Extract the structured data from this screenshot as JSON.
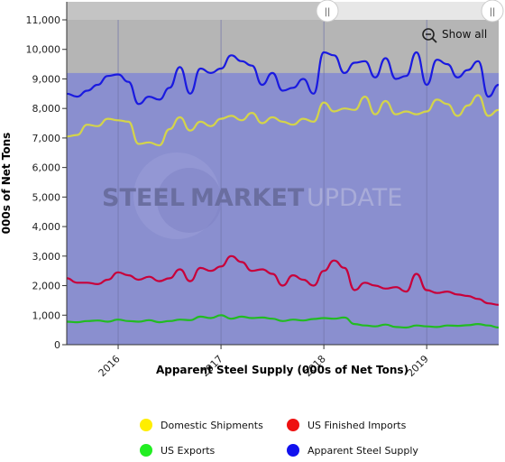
{
  "chart_data": {
    "type": "line",
    "title": "",
    "xlabel": "Apparent Steel Supply (000s of Net Tons)",
    "ylabel": "000s of Net Tons",
    "ylim": [
      0,
      11000
    ],
    "y_ticks": [
      0,
      1000,
      2000,
      3000,
      4000,
      5000,
      6000,
      7000,
      8000,
      9000,
      10000,
      11000
    ],
    "y_tick_labels": [
      "0",
      "1,000",
      "2,000",
      "3,000",
      "4,000",
      "5,000",
      "6,000",
      "7,000",
      "8,000",
      "9,000",
      "10,000",
      "11,000"
    ],
    "x_tick_labels": [
      "2016",
      "2017",
      "2018",
      "2019"
    ],
    "x_tick_positions": [
      2016,
      2017,
      2018,
      2019
    ],
    "xlim": [
      2015.5,
      2019.7
    ],
    "grid": true,
    "legend_position": "bottom",
    "colors": {
      "plot_bg": "#8a8fcf",
      "navigator": "#c4c4c4",
      "grid": "#6f73a8",
      "axis": "#333333"
    },
    "series": [
      {
        "name": "Domestic Shipments",
        "color": "#d4d44a",
        "legend_color": "#ffee00",
        "x": [
          2015.5,
          2015.6,
          2015.7,
          2015.8,
          2015.9,
          2016.0,
          2016.1,
          2016.2,
          2016.3,
          2016.4,
          2016.5,
          2016.6,
          2016.7,
          2016.8,
          2016.9,
          2017.0,
          2017.1,
          2017.2,
          2017.3,
          2017.4,
          2017.5,
          2017.6,
          2017.7,
          2017.8,
          2017.9,
          2018.0,
          2018.1,
          2018.2,
          2018.3,
          2018.4,
          2018.5,
          2018.6,
          2018.7,
          2018.8,
          2018.9,
          2019.0,
          2019.1,
          2019.2,
          2019.3,
          2019.4,
          2019.5,
          2019.6,
          2019.7
        ],
        "values": [
          7050,
          7100,
          7450,
          7400,
          7650,
          7600,
          7550,
          6800,
          6850,
          6750,
          7300,
          7700,
          7250,
          7550,
          7400,
          7650,
          7750,
          7600,
          7850,
          7500,
          7700,
          7550,
          7450,
          7650,
          7550,
          8200,
          7900,
          8000,
          7950,
          8400,
          7800,
          8250,
          7800,
          7900,
          7800,
          7900,
          8300,
          8150,
          7750,
          8100,
          8450,
          7750,
          7950
        ]
      },
      {
        "name": "US Finished Imports",
        "color": "#c8003a",
        "legend_color": "#ee1111",
        "x": [
          2015.5,
          2015.6,
          2015.7,
          2015.8,
          2015.9,
          2016.0,
          2016.1,
          2016.2,
          2016.3,
          2016.4,
          2016.5,
          2016.6,
          2016.7,
          2016.8,
          2016.9,
          2017.0,
          2017.1,
          2017.2,
          2017.3,
          2017.4,
          2017.5,
          2017.6,
          2017.7,
          2017.8,
          2017.9,
          2018.0,
          2018.1,
          2018.2,
          2018.3,
          2018.4,
          2018.5,
          2018.6,
          2018.7,
          2018.8,
          2018.9,
          2019.0,
          2019.1,
          2019.2,
          2019.3,
          2019.4,
          2019.5,
          2019.6,
          2019.7
        ],
        "values": [
          2250,
          2100,
          2100,
          2050,
          2200,
          2450,
          2350,
          2200,
          2300,
          2150,
          2250,
          2550,
          2150,
          2600,
          2500,
          2650,
          3000,
          2800,
          2500,
          2550,
          2400,
          2000,
          2350,
          2200,
          2000,
          2500,
          2850,
          2600,
          1850,
          2100,
          2000,
          1900,
          1950,
          1800,
          2400,
          1850,
          1750,
          1800,
          1700,
          1650,
          1550,
          1400,
          1350
        ]
      },
      {
        "name": "US Exports",
        "color": "#22bb22",
        "legend_color": "#22ee22",
        "x": [
          2015.5,
          2015.6,
          2015.7,
          2015.8,
          2015.9,
          2016.0,
          2016.1,
          2016.2,
          2016.3,
          2016.4,
          2016.5,
          2016.6,
          2016.7,
          2016.8,
          2016.9,
          2017.0,
          2017.1,
          2017.2,
          2017.3,
          2017.4,
          2017.5,
          2017.6,
          2017.7,
          2017.8,
          2017.9,
          2018.0,
          2018.1,
          2018.2,
          2018.3,
          2018.4,
          2018.5,
          2018.6,
          2018.7,
          2018.8,
          2018.9,
          2019.0,
          2019.1,
          2019.2,
          2019.3,
          2019.4,
          2019.5,
          2019.6,
          2019.7
        ],
        "values": [
          780,
          760,
          800,
          820,
          780,
          850,
          800,
          780,
          830,
          760,
          800,
          850,
          830,
          950,
          900,
          1000,
          880,
          950,
          900,
          920,
          880,
          800,
          850,
          820,
          870,
          900,
          880,
          920,
          700,
          650,
          620,
          680,
          600,
          580,
          650,
          620,
          600,
          650,
          640,
          660,
          700,
          650,
          580
        ]
      },
      {
        "name": "Apparent Steel Supply",
        "color": "#1a1ae0",
        "legend_color": "#1111ee",
        "x": [
          2015.5,
          2015.6,
          2015.7,
          2015.8,
          2015.9,
          2016.0,
          2016.1,
          2016.2,
          2016.3,
          2016.4,
          2016.5,
          2016.6,
          2016.7,
          2016.8,
          2016.9,
          2017.0,
          2017.1,
          2017.2,
          2017.3,
          2017.4,
          2017.5,
          2017.6,
          2017.7,
          2017.8,
          2017.9,
          2018.0,
          2018.1,
          2018.2,
          2018.3,
          2018.4,
          2018.5,
          2018.6,
          2018.7,
          2018.8,
          2018.9,
          2019.0,
          2019.1,
          2019.2,
          2019.3,
          2019.4,
          2019.5,
          2019.6,
          2019.7
        ],
        "values": [
          8500,
          8400,
          8600,
          8800,
          9100,
          9150,
          8900,
          8150,
          8400,
          8300,
          8700,
          9400,
          8500,
          9350,
          9200,
          9350,
          9800,
          9600,
          9450,
          8800,
          9200,
          8600,
          8700,
          9000,
          8500,
          9900,
          9800,
          9200,
          9550,
          9600,
          9050,
          9700,
          9000,
          9100,
          9900,
          8800,
          9650,
          9500,
          9050,
          9300,
          9600,
          8400,
          8800
        ]
      }
    ]
  },
  "watermark": {
    "word1": "STEEL",
    "word2": "MARKET",
    "word3": "UPDATE"
  },
  "controls": {
    "show_all_label": "Show all",
    "navigator_handle": "||"
  }
}
